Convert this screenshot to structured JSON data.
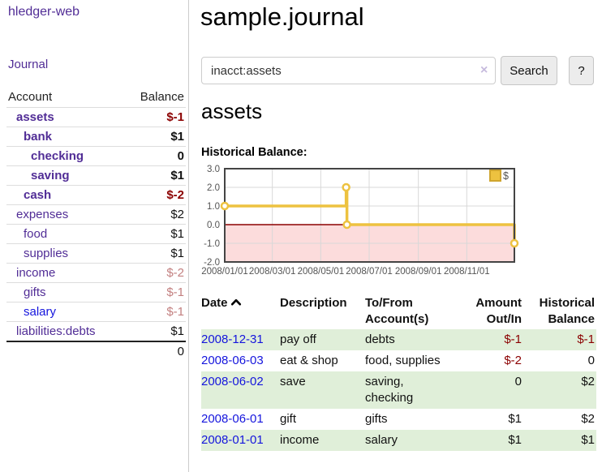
{
  "sidebar": {
    "brand": "hledger-web",
    "journal_label": "Journal",
    "table": {
      "account_header": "Account",
      "balance_header": "Balance"
    },
    "accounts": [
      {
        "name": "assets",
        "indent": 1,
        "bold": true,
        "balance": "$-1",
        "balance_style": "neg"
      },
      {
        "name": "bank",
        "indent": 2,
        "bold": true,
        "balance": "$1",
        "balance_style": "pos"
      },
      {
        "name": "checking",
        "indent": 3,
        "bold": true,
        "balance": "0",
        "balance_style": "pos"
      },
      {
        "name": "saving",
        "indent": 3,
        "bold": true,
        "balance": "$1",
        "balance_style": "pos"
      },
      {
        "name": "cash",
        "indent": 2,
        "bold": true,
        "balance": "$-2",
        "balance_style": "neg"
      },
      {
        "name": "expenses",
        "indent": 1,
        "bold": false,
        "balance": "$2",
        "balance_style": "pos"
      },
      {
        "name": "food",
        "indent": 2,
        "bold": false,
        "balance": "$1",
        "balance_style": "pos"
      },
      {
        "name": "supplies",
        "indent": 2,
        "bold": false,
        "balance": "$1",
        "balance_style": "pos"
      },
      {
        "name": "income",
        "indent": 1,
        "bold": false,
        "balance": "$-2",
        "balance_style": "neg-soft"
      },
      {
        "name": "gifts",
        "indent": 2,
        "bold": false,
        "balance": "$-1",
        "balance_style": "neg-soft"
      },
      {
        "name": "salary",
        "indent": 2,
        "bold": false,
        "link_style": "blue",
        "balance": "$-1",
        "balance_style": "neg-soft"
      },
      {
        "name": "liabilities:debts",
        "indent": 1,
        "bold": false,
        "balance": "$1",
        "balance_style": "pos"
      }
    ],
    "total": "0"
  },
  "main": {
    "title": "sample.journal",
    "search": {
      "value": "inacct:assets",
      "clear": "×",
      "search_button": "Search",
      "help_button": "?"
    },
    "account_heading": "assets",
    "chart_label": "Historical Balance:"
  },
  "chart_data": {
    "type": "line",
    "step": true,
    "title": "Historical Balance",
    "series": [
      {
        "name": "$",
        "color": "#edc240",
        "points": [
          [
            "2008-01-01",
            1.0
          ],
          [
            "2008-06-02",
            2.0
          ],
          [
            "2008-06-03",
            0.0
          ],
          [
            "2008-12-31",
            -1.0
          ]
        ]
      }
    ],
    "x_range": [
      "2008-01-01",
      "2008-12-31"
    ],
    "ylim": [
      -2.0,
      3.0
    ],
    "yticks": [
      "3.0",
      "2.0",
      "1.0",
      "0.0",
      "-1.0",
      "-2.0"
    ],
    "xticks": [
      {
        "label": "2008/01/01",
        "date": "2008-01-01"
      },
      {
        "label": "2008/03/01",
        "date": "2008-03-01"
      },
      {
        "label": "2008/05/01",
        "date": "2008-05-01"
      },
      {
        "label": "2008/07/01",
        "date": "2008-07-01"
      },
      {
        "label": "2008/09/01",
        "date": "2008-09-01"
      },
      {
        "label": "2008/11/01",
        "date": "2008-11-01"
      }
    ],
    "legend": {
      "position": "top-right",
      "label": "$"
    },
    "grid": true,
    "negative_fill": "#fcdcdc",
    "zero_line_color": "#8b0000",
    "border_color": "#444444",
    "grid_color": "#d8d8d8",
    "tick_color": "#545454"
  },
  "register": {
    "headers": {
      "date": "Date",
      "description": "Description",
      "tofrom": "To/From Account(s)",
      "amount": "Amount Out/In",
      "balance": "Historical Balance"
    },
    "rows": [
      {
        "date": "2008-12-31",
        "description": "pay off",
        "accounts": "debts",
        "amount": "$-1",
        "amount_style": "neg",
        "balance": "$-1",
        "balance_style": "neg",
        "shaded": true
      },
      {
        "date": "2008-06-03",
        "description": "eat & shop",
        "accounts": "food, supplies",
        "amount": "$-2",
        "amount_style": "neg",
        "balance": "0",
        "balance_style": "pos",
        "shaded": false
      },
      {
        "date": "2008-06-02",
        "description": "save",
        "accounts": "saving, checking",
        "amount": "0",
        "amount_style": "pos",
        "balance": "$2",
        "balance_style": "pos",
        "shaded": true
      },
      {
        "date": "2008-06-01",
        "description": "gift",
        "accounts": "gifts",
        "amount": "$1",
        "amount_style": "pos",
        "balance": "$2",
        "balance_style": "pos",
        "shaded": false
      },
      {
        "date": "2008-01-01",
        "description": "income",
        "accounts": "salary",
        "amount": "$1",
        "amount_style": "pos",
        "balance": "$1",
        "balance_style": "pos",
        "shaded": true
      }
    ]
  }
}
